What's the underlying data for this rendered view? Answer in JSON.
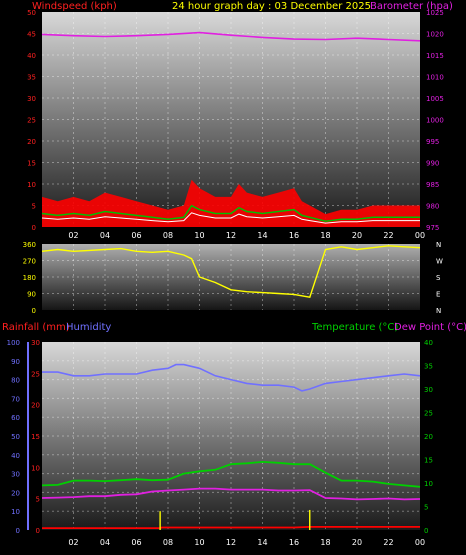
{
  "header": {
    "title": "24 hour graph day : 03 December 2025",
    "left_label": "Windspeed (kph)",
    "right_label": "Barometer (hpa)"
  },
  "bottom_header": {
    "rainfall_label": "Rainfall (mm)",
    "humidity_label": "Humidity",
    "temperature_label": "Temperature (°C)",
    "dewpoint_label": "Dew Point (°C)"
  },
  "colors": {
    "windspeed": "#ff0000",
    "gust": "#00c000",
    "wind_avg": "#ffffff",
    "barometer": "#e020e0",
    "direction": "#ffff00",
    "rainfall": "#ff0000",
    "rain_rate": "#ffff00",
    "humidity": "#7070ff",
    "temperature": "#00d000",
    "dewpoint": "#e020e0",
    "title": "#ffff00",
    "axis_rain": "#ff0000",
    "axis_humidity": "#7070ff",
    "axis_temp": "#00d000"
  },
  "chart_data": [
    {
      "type": "line",
      "name": "wind-barometer",
      "x_ticks": [
        "02",
        "04",
        "06",
        "08",
        "10",
        "12",
        "14",
        "16",
        "18",
        "20",
        "22",
        "00"
      ],
      "y_left_ticks": [
        "0",
        "5",
        "10",
        "15",
        "20",
        "25",
        "30",
        "35",
        "40",
        "45",
        "50"
      ],
      "y_right_ticks": [
        "975",
        "980",
        "985",
        "990",
        "995",
        "1000",
        "1005",
        "1010",
        "1015",
        "1020",
        "1025"
      ],
      "ylim_left": [
        0,
        50
      ],
      "ylim_right": [
        975,
        1025
      ],
      "series": [
        {
          "name": "Windspeed (kph)",
          "axis": "left",
          "hours": [
            0,
            1,
            2,
            3,
            4,
            5,
            6,
            7,
            8,
            9,
            9.5,
            10,
            11,
            12,
            12.5,
            13,
            14,
            15,
            16,
            16.5,
            17,
            18,
            19,
            20,
            21,
            22,
            23,
            24
          ],
          "values": [
            7,
            6,
            7,
            6,
            8,
            7,
            6,
            5,
            4,
            5,
            11,
            9,
            7,
            7,
            10,
            8,
            7,
            8,
            9,
            6,
            5,
            3,
            4,
            4,
            5,
            5,
            5,
            5
          ]
        },
        {
          "name": "Barometer (hpa)",
          "axis": "right",
          "hours": [
            0,
            2,
            4,
            6,
            8,
            10,
            12,
            14,
            16,
            18,
            20,
            22,
            24
          ],
          "values": [
            1019.8,
            1019.5,
            1019.3,
            1019.5,
            1019.8,
            1020.2,
            1019.6,
            1019.1,
            1018.7,
            1018.6,
            1018.9,
            1018.6,
            1018.3
          ]
        }
      ]
    },
    {
      "type": "scatter",
      "name": "wind-direction",
      "x_ticks": [
        "02",
        "04",
        "06",
        "08",
        "10",
        "12",
        "14",
        "16",
        "18",
        "20",
        "22",
        "00"
      ],
      "y_left_ticks": [
        "0",
        "90",
        "180",
        "270",
        "360"
      ],
      "y_right_ticks": [
        "N",
        "E",
        "S",
        "W",
        "N"
      ],
      "ylim": [
        0,
        360
      ],
      "series": [
        {
          "name": "Direction",
          "hours": [
            0,
            1,
            2,
            3,
            4,
            5,
            6,
            7,
            8,
            9,
            9.5,
            10,
            11,
            12,
            13,
            14,
            15,
            16,
            17,
            18,
            19,
            20,
            21,
            22,
            23,
            24
          ],
          "values": [
            320,
            330,
            320,
            325,
            330,
            335,
            320,
            315,
            320,
            300,
            280,
            180,
            150,
            110,
            100,
            95,
            90,
            85,
            70,
            330,
            345,
            330,
            340,
            350,
            345,
            340
          ]
        }
      ]
    },
    {
      "type": "line",
      "name": "rain-humidity-temp",
      "x_ticks": [
        "02",
        "04",
        "06",
        "08",
        "10",
        "12",
        "14",
        "16",
        "18",
        "20",
        "22",
        "00"
      ],
      "y_left_ticks": [
        "0",
        "5",
        "10",
        "15",
        "20",
        "25",
        "30"
      ],
      "y_humidity_ticks": [
        "0",
        "10",
        "20",
        "30",
        "40",
        "50",
        "60",
        "70",
        "80",
        "90",
        "100"
      ],
      "y_right_ticks": [
        "0",
        "5",
        "10",
        "15",
        "20",
        "25",
        "30",
        "35",
        "40"
      ],
      "ylim_left": [
        0,
        30
      ],
      "ylim_humidity": [
        0,
        100
      ],
      "ylim_right": [
        0,
        40
      ],
      "series": [
        {
          "name": "Humidity",
          "axis": "humidity",
          "hours": [
            0,
            1,
            2,
            3,
            4,
            5,
            6,
            7,
            8,
            8.5,
            9,
            10,
            11,
            12,
            13,
            14,
            15,
            16,
            16.5,
            17,
            18,
            19,
            20,
            21,
            22,
            23,
            24
          ],
          "values": [
            84,
            84,
            82,
            82,
            83,
            83,
            83,
            85,
            86,
            88,
            88,
            86,
            82,
            80,
            78,
            77,
            77,
            76,
            74,
            75,
            78,
            79,
            80,
            81,
            82,
            83,
            82
          ]
        },
        {
          "name": "Temperature (°C)",
          "axis": "right",
          "hours": [
            0,
            1,
            2,
            3,
            4,
            5,
            6,
            7,
            8,
            9,
            10,
            11,
            12,
            13,
            14,
            15,
            16,
            17,
            18,
            19,
            20,
            21,
            22,
            23,
            24
          ],
          "values": [
            9.5,
            9.6,
            10.5,
            10.5,
            10.4,
            10.6,
            10.8,
            10.6,
            10.7,
            12.0,
            12.5,
            12.8,
            14.0,
            14.2,
            14.5,
            14.3,
            14.0,
            14.0,
            12.2,
            10.5,
            10.5,
            10.3,
            9.8,
            9.5,
            9.2
          ]
        },
        {
          "name": "Dew Point (°C)",
          "axis": "right",
          "hours": [
            0,
            1,
            2,
            3,
            4,
            5,
            6,
            7,
            8,
            9,
            10,
            11,
            12,
            13,
            14,
            15,
            16,
            17,
            18,
            19,
            20,
            21,
            22,
            23,
            24
          ],
          "values": [
            6.8,
            6.9,
            7.0,
            7.2,
            7.2,
            7.5,
            7.6,
            8.2,
            8.4,
            8.6,
            8.8,
            8.8,
            8.6,
            8.6,
            8.6,
            8.4,
            8.4,
            8.5,
            6.8,
            6.7,
            6.5,
            6.6,
            6.7,
            6.5,
            6.6
          ]
        },
        {
          "name": "Rainfall (mm)",
          "axis": "left",
          "hours": [
            0,
            7.5,
            7.6,
            10,
            12,
            14,
            16,
            17,
            18,
            20,
            22,
            24
          ],
          "values": [
            0,
            0,
            0.1,
            0.1,
            0.1,
            0.1,
            0.1,
            0.2,
            0.2,
            0.2,
            0.2,
            0.2
          ]
        }
      ]
    }
  ]
}
